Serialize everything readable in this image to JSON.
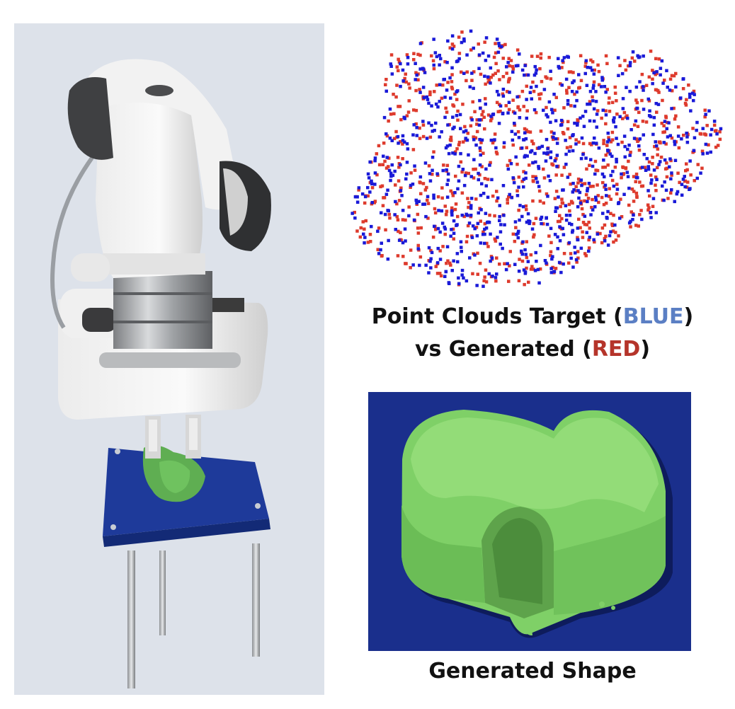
{
  "figure": {
    "point_cloud_caption": {
      "line1_prefix": "Point Clouds Target (",
      "line1_highlight": "BLUE",
      "line1_suffix": ")",
      "line2_prefix": "vs Generated (",
      "line2_highlight": "RED",
      "line2_suffix": ")"
    },
    "shape_caption": "Generated Shape"
  },
  "colors": {
    "target_points": "#1a1ad8",
    "generated_points": "#de3b2d",
    "blue_label": "#5b7fc4",
    "red_label": "#b5342a",
    "clay": "#7fd067",
    "table": "#1e3a9a",
    "photo_background": "#dde2ea",
    "shape_background": "#1a2f8c"
  }
}
